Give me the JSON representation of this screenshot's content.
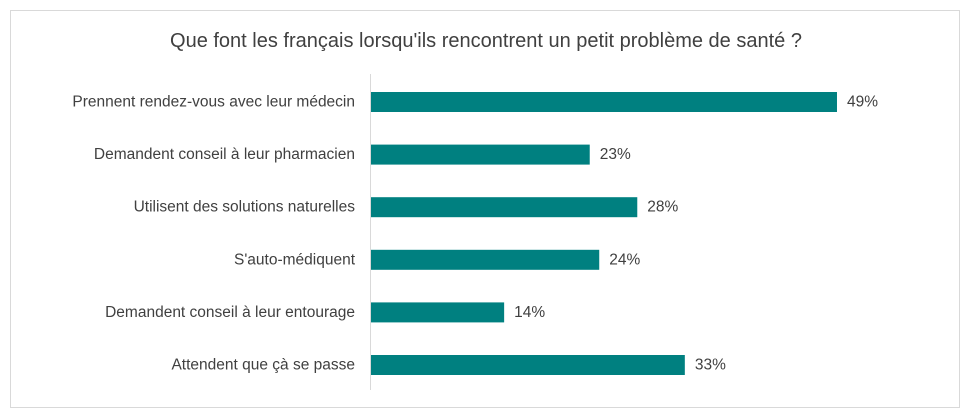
{
  "chart_data": {
    "type": "bar",
    "orientation": "horizontal",
    "title": "Que font les français lorsqu'ils rencontrent un petit problème de santé ?",
    "categories": [
      "Prennent rendez-vous avec leur médecin",
      "Demandent conseil à leur pharmacien",
      "Utilisent des solutions naturelles",
      "S'auto-médiquent",
      "Demandent conseil à leur entourage",
      "Attendent que çà se passe"
    ],
    "values": [
      49,
      23,
      28,
      24,
      14,
      33
    ],
    "value_labels": [
      "49%",
      "23%",
      "28%",
      "24%",
      "14%",
      "33%"
    ],
    "xlim": [
      0,
      100
    ],
    "grid": false,
    "bar_color": "#008080"
  }
}
